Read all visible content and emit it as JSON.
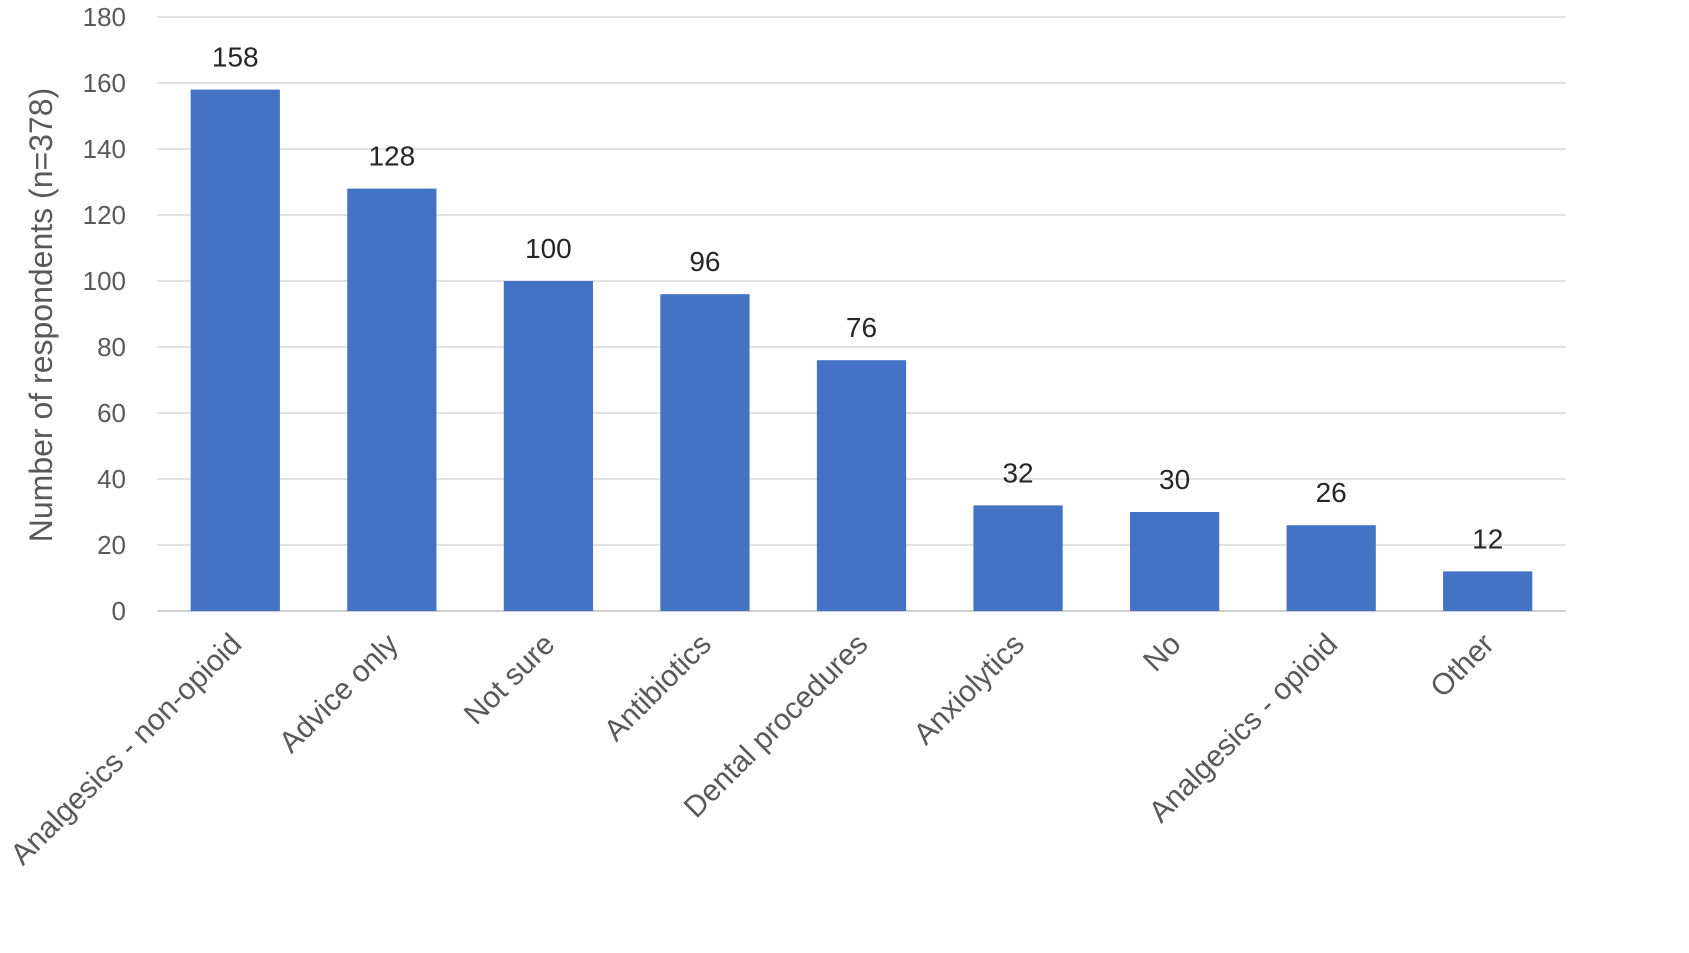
{
  "chart_data": {
    "type": "bar",
    "categories": [
      "Analgesics - non-opioid",
      "Advice only",
      "Not sure",
      "Antibiotics",
      "Dental procedures",
      "Anxiolytics",
      "No",
      "Analgesics - opioid",
      "Other"
    ],
    "values": [
      158,
      128,
      100,
      96,
      76,
      32,
      30,
      26,
      12
    ],
    "data_labels": [
      "158",
      "128",
      "100",
      "96",
      "76",
      "32",
      "30",
      "26",
      "12"
    ],
    "title": "",
    "xlabel": "",
    "ylabel": "Number of respondents (n=378)",
    "ylim": [
      0,
      180
    ],
    "yticks": [
      0,
      20,
      40,
      60,
      80,
      100,
      120,
      140,
      160,
      180
    ],
    "grid": true,
    "legend": "none",
    "bar_color": "#4472C4"
  }
}
